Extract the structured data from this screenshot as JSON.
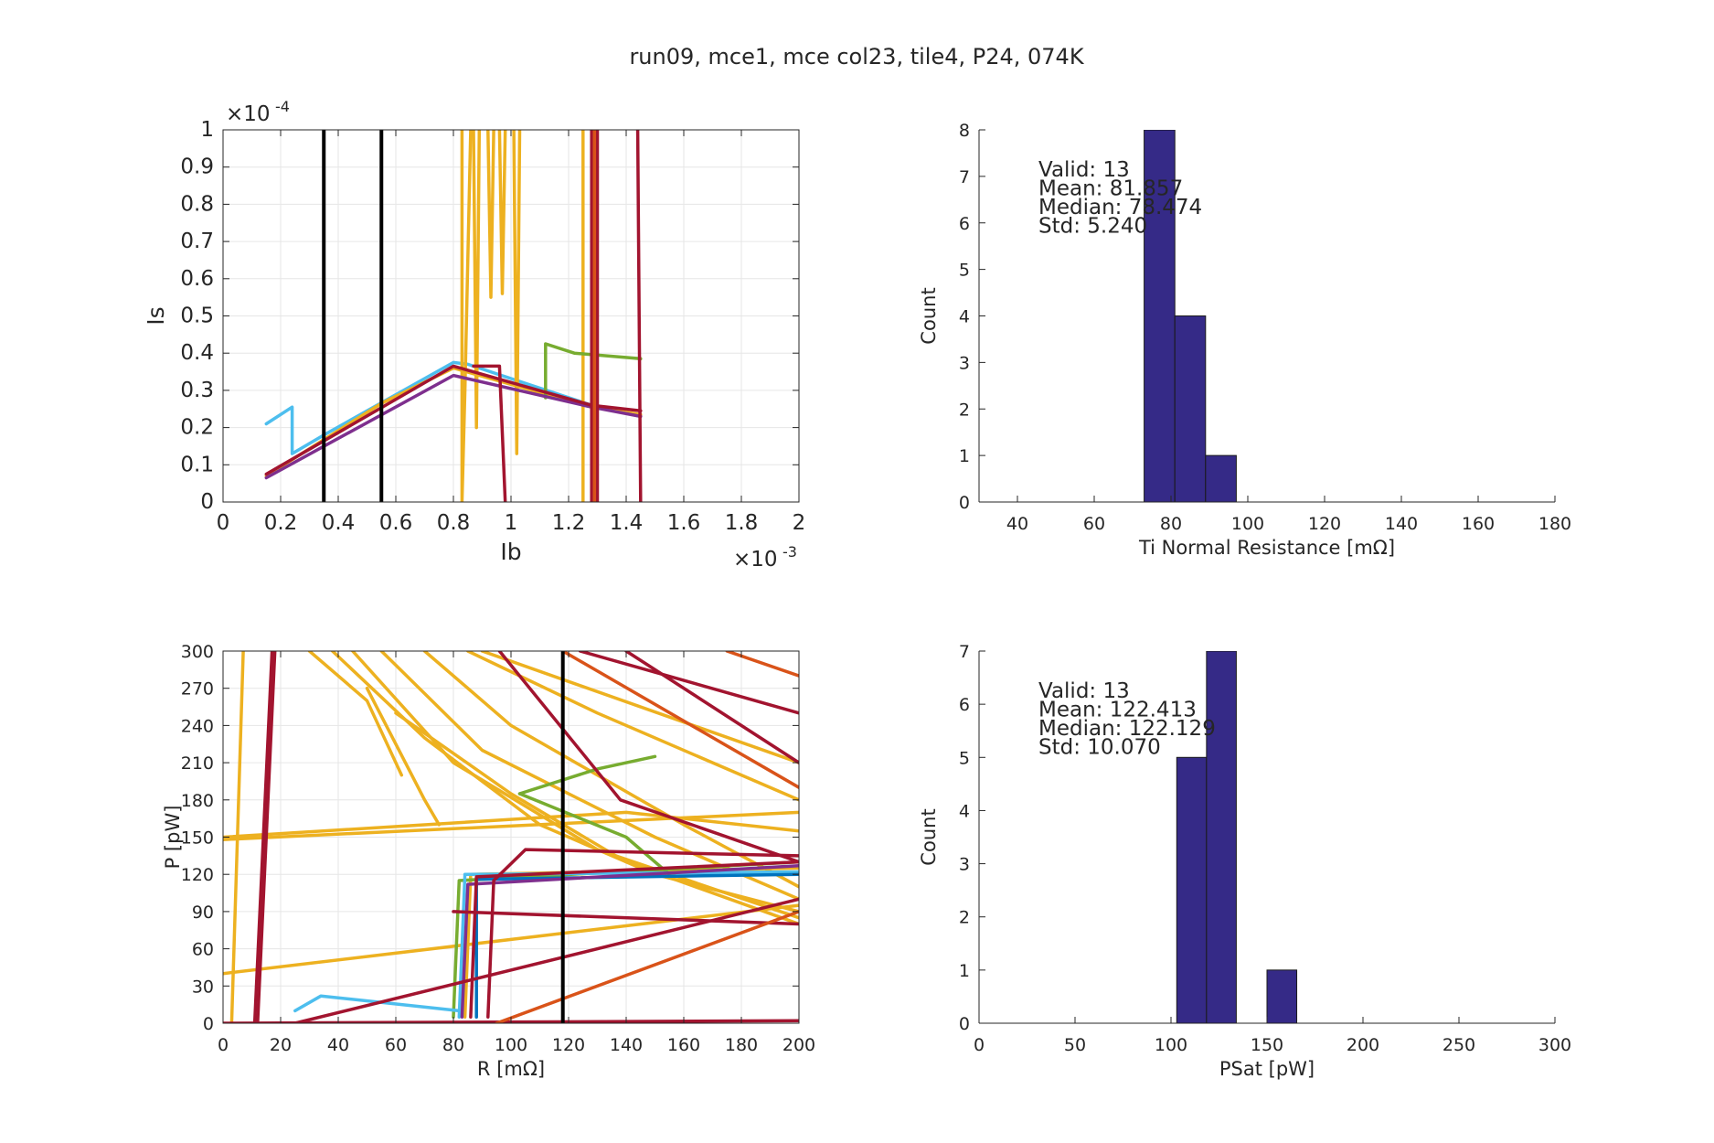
{
  "figure": {
    "title": "run09, mce1, mce col23, tile4, P24, 074K"
  },
  "chart_data": [
    {
      "id": "iv",
      "type": "line",
      "xlabel": "Ib",
      "ylabel": "Is",
      "xlim": [
        0,
        0.002
      ],
      "ylim": [
        0,
        0.0001
      ],
      "x_exponent": "×10",
      "x_exponent_power": "-3",
      "y_exponent": "×10",
      "y_exponent_power": "-4",
      "xticks": [
        0,
        0.0002,
        0.0004,
        0.0006,
        0.0008,
        0.001,
        0.0012,
        0.0014,
        0.0016,
        0.0018,
        0.002
      ],
      "xtick_labels": [
        "0",
        "0.2",
        "0.4",
        "0.6",
        "0.8",
        "1",
        "1.2",
        "1.4",
        "1.6",
        "1.8",
        "2"
      ],
      "yticks": [
        0,
        1e-05,
        2e-05,
        3e-05,
        4e-05,
        5e-05,
        6e-05,
        7e-05,
        8e-05,
        9e-05,
        0.0001
      ],
      "ytick_labels": [
        "0",
        "0.1",
        "0.2",
        "0.3",
        "0.4",
        "0.5",
        "0.6",
        "0.7",
        "0.8",
        "0.9",
        "1"
      ],
      "grid": true,
      "vlines": [
        0.00035,
        0.00055
      ],
      "vline_color": "#000000",
      "series": [
        {
          "color": "#4dbeee",
          "points": [
            [
              0.00015,
              2.1e-05
            ],
            [
              0.00024,
              2.55e-05
            ],
            [
              0.00024,
              1.3e-05
            ],
            [
              0.00035,
              1.8e-05
            ],
            [
              0.0008,
              3.75e-05
            ],
            [
              0.00085,
              3.7e-05
            ],
            [
              0.00128,
              2.6e-05
            ],
            [
              0.00145,
              2.3e-05
            ]
          ]
        },
        {
          "color": "#edb120",
          "points": [
            [
              0.00015,
              7e-06
            ],
            [
              0.00055,
              2.65e-05
            ],
            [
              0.0008,
              3.6e-05
            ],
            [
              0.00128,
              2.55e-05
            ],
            [
              0.00145,
              2.35e-05
            ]
          ]
        },
        {
          "color": "#edb120",
          "points": [
            [
              0.00083,
              0.0001
            ],
            [
              0.00083,
              0.0
            ],
            [
              0.00084,
              3e-05
            ],
            [
              0.00086,
              0.0001
            ]
          ]
        },
        {
          "color": "#edb120",
          "points": [
            [
              0.00087,
              0.0001
            ],
            [
              0.00088,
              2e-05
            ],
            [
              0.00089,
              0.0001
            ]
          ]
        },
        {
          "color": "#edb120",
          "points": [
            [
              0.00092,
              0.0001
            ],
            [
              0.00093,
              5.5e-05
            ],
            [
              0.00094,
              0.0001
            ]
          ]
        },
        {
          "color": "#edb120",
          "points": [
            [
              0.00096,
              0.0001
            ],
            [
              0.00097,
              5.6e-05
            ],
            [
              0.00098,
              0.0001
            ]
          ]
        },
        {
          "color": "#edb120",
          "points": [
            [
              0.00101,
              0.0001
            ],
            [
              0.00102,
              1.3e-05
            ],
            [
              0.00103,
              0.0001
            ]
          ]
        },
        {
          "color": "#edb120",
          "points": [
            [
              0.00125,
              0.0001
            ],
            [
              0.00125,
              0.0
            ]
          ]
        },
        {
          "color": "#77ac30",
          "points": [
            [
              0.00112,
              2.8e-05
            ],
            [
              0.00112,
              4.25e-05
            ],
            [
              0.00122,
              4e-05
            ],
            [
              0.00145,
              3.85e-05
            ]
          ]
        },
        {
          "color": "#7e2f8e",
          "points": [
            [
              0.00015,
              6.5e-06
            ],
            [
              0.0008,
              3.4e-05
            ],
            [
              0.00128,
              2.55e-05
            ],
            [
              0.00145,
              2.3e-05
            ]
          ]
        },
        {
          "color": "#a2142f",
          "points": [
            [
              0.00015,
              7.5e-06
            ],
            [
              0.0008,
              3.65e-05
            ],
            [
              0.00128,
              2.6e-05
            ],
            [
              0.00145,
              2.45e-05
            ]
          ]
        },
        {
          "color": "#a2142f",
          "points": [
            [
              0.00087,
              3.65e-05
            ],
            [
              0.00096,
              3.65e-05
            ],
            [
              0.00098,
              0.0
            ]
          ]
        },
        {
          "color": "#a2142f",
          "points": [
            [
              0.00128,
              0.0001
            ],
            [
              0.00128,
              0.0
            ]
          ]
        },
        {
          "color": "#a2142f",
          "points": [
            [
              0.0013,
              0.0001
            ],
            [
              0.0013,
              0.0
            ]
          ]
        },
        {
          "color": "#d95319",
          "points": [
            [
              0.00129,
              0.0001
            ],
            [
              0.00129,
              0.0
            ]
          ]
        },
        {
          "color": "#a2142f",
          "points": [
            [
              0.00144,
              0.0001
            ],
            [
              0.00145,
              0.0
            ]
          ]
        }
      ]
    },
    {
      "id": "rn-hist",
      "type": "bar",
      "xlabel": "Ti Normal Resistance [mΩ]",
      "ylabel": "Count",
      "xlim": [
        30,
        180
      ],
      "ylim": [
        0,
        8
      ],
      "xticks": [
        40,
        60,
        80,
        100,
        120,
        140,
        160,
        180
      ],
      "yticks": [
        0,
        1,
        2,
        3,
        4,
        5,
        6,
        7,
        8
      ],
      "grid": false,
      "bins": [
        [
          73,
          81,
          8
        ],
        [
          81,
          89,
          4
        ],
        [
          89,
          97,
          1
        ]
      ],
      "bar_color": "#352a87",
      "stats": [
        "Valid: 13",
        "Mean: 81.857",
        "Median: 78.474",
        "Std: 5.240"
      ]
    },
    {
      "id": "pr",
      "type": "line",
      "xlabel": "R [mΩ]",
      "ylabel": "P [pW]",
      "xlim": [
        0,
        200
      ],
      "ylim": [
        0,
        300
      ],
      "xticks": [
        0,
        20,
        40,
        60,
        80,
        100,
        120,
        140,
        160,
        180,
        200
      ],
      "yticks": [
        0,
        30,
        60,
        90,
        120,
        150,
        180,
        210,
        240,
        270,
        300
      ],
      "grid": true,
      "vlines": [
        118
      ],
      "vline_color": "#000000",
      "series": [
        {
          "color": "#edb120",
          "points": [
            [
              3,
              0
            ],
            [
              7,
              300
            ]
          ]
        },
        {
          "color": "#edb120",
          "points": [
            [
              0,
              148
            ],
            [
              200,
              170
            ]
          ]
        },
        {
          "color": "#edb120",
          "points": [
            [
              0,
              40
            ],
            [
              200,
              95
            ]
          ]
        },
        {
          "color": "#edb120",
          "points": [
            [
              0,
              150
            ],
            [
              140,
              170
            ],
            [
              200,
              155
            ]
          ]
        },
        {
          "color": "#edb120",
          "points": [
            [
              30,
              300
            ],
            [
              50,
              260
            ],
            [
              62,
              200
            ]
          ]
        },
        {
          "color": "#edb120",
          "points": [
            [
              38,
              300
            ],
            [
              70,
              230
            ],
            [
              110,
              160
            ],
            [
              150,
              120
            ],
            [
              200,
              90
            ]
          ]
        },
        {
          "color": "#edb120",
          "points": [
            [
              45,
              300
            ],
            [
              80,
              210
            ],
            [
              130,
              140
            ],
            [
              200,
              85
            ]
          ]
        },
        {
          "color": "#edb120",
          "points": [
            [
              55,
              300
            ],
            [
              90,
              220
            ],
            [
              150,
              150
            ],
            [
              200,
              100
            ]
          ]
        },
        {
          "color": "#edb120",
          "points": [
            [
              70,
              300
            ],
            [
              100,
              240
            ],
            [
              160,
              160
            ],
            [
              200,
              110
            ]
          ]
        },
        {
          "color": "#edb120",
          "points": [
            [
              85,
              300
            ],
            [
              130,
              250
            ],
            [
              200,
              180
            ]
          ]
        },
        {
          "color": "#edb120",
          "points": [
            [
              60,
              250
            ],
            [
              100,
              185
            ],
            [
              140,
              130
            ],
            [
              200,
              80
            ]
          ]
        },
        {
          "color": "#edb120",
          "points": [
            [
              50,
              270
            ],
            [
              70,
              180
            ],
            [
              75,
              160
            ]
          ]
        },
        {
          "color": "#edb120",
          "points": [
            [
              90,
              300
            ],
            [
              200,
              210
            ]
          ]
        },
        {
          "color": "#edb120",
          "points": [
            [
              84,
              5
            ],
            [
              86,
              120
            ],
            [
              200,
              125
            ]
          ]
        },
        {
          "color": "#77ac30",
          "points": [
            [
              80,
              5
            ],
            [
              82,
              115
            ],
            [
              200,
              130
            ]
          ]
        },
        {
          "color": "#77ac30",
          "points": [
            [
              103,
              185
            ],
            [
              130,
              205
            ],
            [
              150,
              215
            ]
          ]
        },
        {
          "color": "#77ac30",
          "points": [
            [
              103,
              185
            ],
            [
              140,
              150
            ],
            [
              155,
              120
            ]
          ]
        },
        {
          "color": "#4dbeee",
          "points": [
            [
              25,
              10
            ],
            [
              34,
              22
            ],
            [
              82,
              10
            ]
          ]
        },
        {
          "color": "#4dbeee",
          "points": [
            [
              82,
              5
            ],
            [
              84,
              120
            ],
            [
              200,
              122
            ]
          ]
        },
        {
          "color": "#0072bd",
          "points": [
            [
              88,
              5
            ],
            [
              88,
              116
            ],
            [
              200,
              120
            ]
          ]
        },
        {
          "color": "#7e2f8e",
          "points": [
            [
              83,
              5
            ],
            [
              85,
              112
            ],
            [
              200,
              127
            ]
          ]
        },
        {
          "color": "#a2142f",
          "points": [
            [
              11,
              0
            ],
            [
              17,
              300
            ]
          ]
        },
        {
          "color": "#a2142f",
          "points": [
            [
              12,
              0
            ],
            [
              18,
              300
            ]
          ]
        },
        {
          "color": "#a2142f",
          "points": [
            [
              0,
              0
            ],
            [
              200,
              2
            ]
          ]
        },
        {
          "color": "#a2142f",
          "points": [
            [
              25,
              0
            ],
            [
              200,
              100
            ]
          ]
        },
        {
          "color": "#a2142f",
          "points": [
            [
              92,
              5
            ],
            [
              94,
              115
            ],
            [
              105,
              140
            ],
            [
              200,
              135
            ]
          ]
        },
        {
          "color": "#a2142f",
          "points": [
            [
              86,
              5
            ],
            [
              88,
              118
            ],
            [
              200,
              130
            ]
          ]
        },
        {
          "color": "#a2142f",
          "points": [
            [
              96,
              300
            ],
            [
              138,
              180
            ],
            [
              200,
              130
            ]
          ]
        },
        {
          "color": "#a2142f",
          "points": [
            [
              124,
              300
            ],
            [
              200,
              250
            ]
          ]
        },
        {
          "color": "#a2142f",
          "points": [
            [
              140,
              300
            ],
            [
              200,
              210
            ]
          ]
        },
        {
          "color": "#a2142f",
          "points": [
            [
              80,
              90
            ],
            [
              200,
              80
            ]
          ]
        },
        {
          "color": "#d95319",
          "points": [
            [
              118,
              300
            ],
            [
              200,
              190
            ]
          ]
        },
        {
          "color": "#d95319",
          "points": [
            [
              95,
              0
            ],
            [
              200,
              90
            ]
          ]
        },
        {
          "color": "#d95319",
          "points": [
            [
              175,
              300
            ],
            [
              200,
              280
            ]
          ]
        }
      ]
    },
    {
      "id": "psat-hist",
      "type": "bar",
      "xlabel": "PSat [pW]",
      "ylabel": "Count",
      "xlim": [
        0,
        300
      ],
      "ylim": [
        0,
        7
      ],
      "xticks": [
        0,
        50,
        100,
        150,
        200,
        250,
        300
      ],
      "yticks": [
        0,
        1,
        2,
        3,
        4,
        5,
        6,
        7
      ],
      "grid": false,
      "bins": [
        [
          103,
          118.5,
          5
        ],
        [
          118.5,
          134,
          7
        ],
        [
          150,
          165.5,
          1
        ]
      ],
      "bar_color": "#352a87",
      "stats": [
        "Valid: 13",
        "Mean: 122.413",
        "Median: 122.129",
        "Std: 10.070"
      ]
    }
  ]
}
